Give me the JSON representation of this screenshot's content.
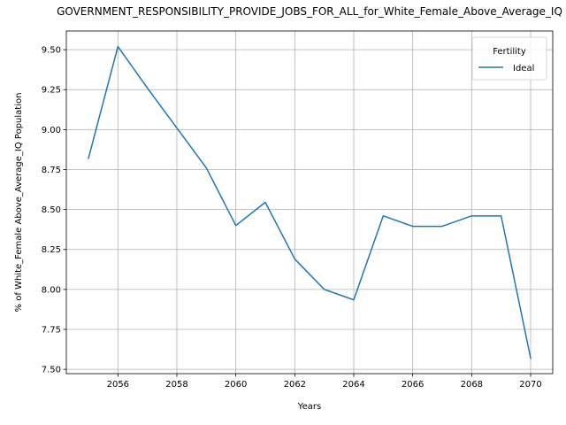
{
  "chart_data": {
    "type": "line",
    "title": "GOVERNMENT_RESPONSIBILITY_PROVIDE_JOBS_FOR_ALL_for_White_Female_Above_Average_IQ",
    "xlabel": "Years",
    "ylabel": "% of White_Female Above_Average_IQ Population",
    "x": [
      2055,
      2056,
      2057,
      2058,
      2059,
      2060,
      2061,
      2062,
      2063,
      2064,
      2065,
      2066,
      2067,
      2068,
      2069,
      2070
    ],
    "series": [
      {
        "name": "Ideal",
        "color": "#1f77b4",
        "values": [
          8.82,
          9.52,
          9.26,
          9.01,
          8.76,
          8.4,
          8.545,
          8.19,
          8.0,
          7.935,
          8.46,
          8.395,
          8.395,
          8.46,
          8.46,
          7.57
        ]
      }
    ],
    "xlim": [
      2054.25,
      2070.75
    ],
    "ylim": [
      7.473,
      9.617
    ],
    "xticks": [
      2056,
      2058,
      2060,
      2062,
      2064,
      2066,
      2068,
      2070
    ],
    "yticks": [
      7.5,
      7.75,
      8.0,
      8.25,
      8.5,
      8.75,
      9.0,
      9.25,
      9.5
    ],
    "ytick_labels": [
      "7.50",
      "7.75",
      "8.00",
      "8.25",
      "8.50",
      "8.75",
      "9.00",
      "9.25",
      "9.50"
    ],
    "grid": true,
    "legend": {
      "title": "Fertility",
      "placement": "top-right"
    }
  }
}
